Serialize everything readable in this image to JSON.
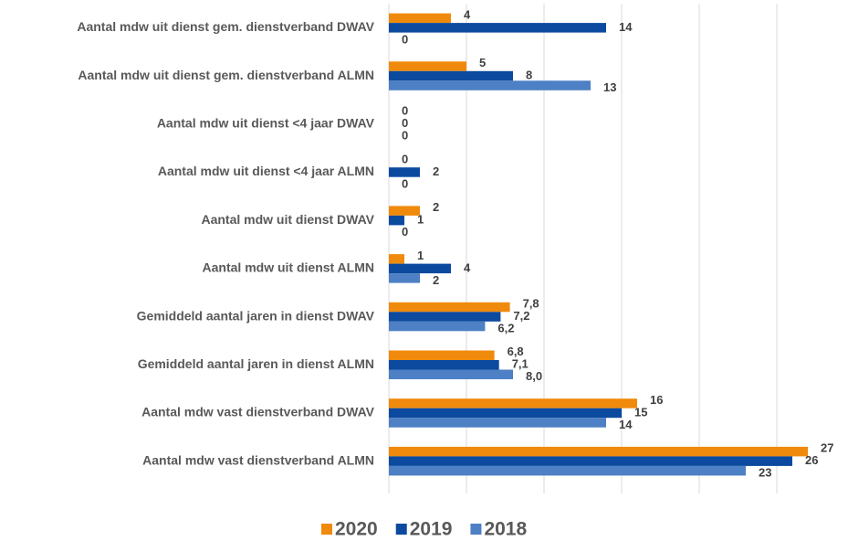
{
  "chart_data": {
    "type": "hbar",
    "categories": [
      "Aantal mdw uit dienst gem. dienstverband DWAV",
      "Aantal mdw uit dienst gem. dienstverband ALMN",
      "Aantal mdw uit dienst <4 jaar DWAV",
      "Aantal mdw uit dienst <4 jaar ALMN",
      "Aantal mdw uit dienst DWAV",
      "Aantal mdw uit dienst ALMN",
      "Gemiddeld aantal jaren in dienst DWAV",
      "Gemiddeld aantal jaren in dienst ALMN",
      "Aantal mdw vast dienstverband DWAV",
      "Aantal mdw vast dienstverband ALMN"
    ],
    "series": [
      {
        "name": "2020",
        "color": "#f08a0c",
        "values": [
          4,
          5,
          0,
          0,
          2,
          1,
          7.8,
          6.8,
          16,
          27
        ],
        "value_labels": [
          "4",
          "5",
          "0",
          "0",
          "2",
          "1",
          "7,8",
          "6,8",
          "16",
          "27"
        ]
      },
      {
        "name": "2019",
        "color": "#0b4a9e",
        "values": [
          14,
          8,
          0,
          2,
          1,
          4,
          7.2,
          7.1,
          15,
          26
        ],
        "value_labels": [
          "14",
          "8",
          "0",
          "2",
          "1",
          "4",
          "7,2",
          "7,1",
          "15",
          "26"
        ]
      },
      {
        "name": "2018",
        "color": "#4d80c4",
        "values": [
          0,
          13,
          0,
          0,
          0,
          2,
          6.2,
          8.0,
          14,
          23
        ],
        "value_labels": [
          "0",
          "13",
          "0",
          "0",
          "0",
          "2",
          "6,2",
          "8,0",
          "14",
          "23"
        ]
      }
    ],
    "xlim": [
      0,
      28
    ],
    "xticks": [
      0,
      5,
      10,
      15,
      20,
      25
    ],
    "grid": true,
    "legend": "bottom"
  }
}
